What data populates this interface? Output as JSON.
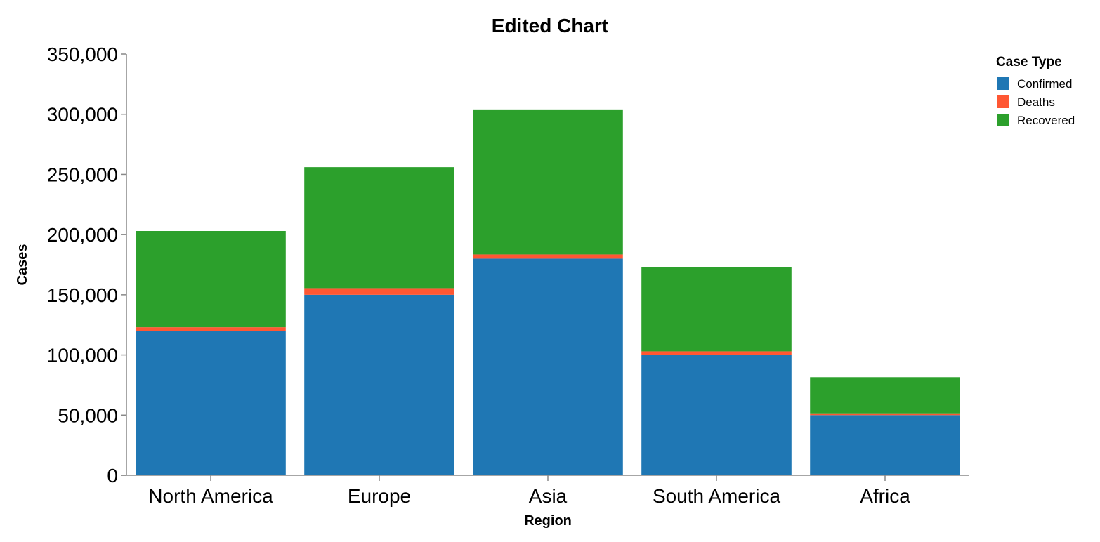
{
  "chart_data": {
    "type": "bar",
    "stacked": true,
    "title": "Edited Chart",
    "xlabel": "Region",
    "ylabel": "Cases",
    "categories": [
      "North America",
      "Europe",
      "Asia",
      "South America",
      "Africa"
    ],
    "series": [
      {
        "name": "Confirmed",
        "color": "#1f77b4",
        "values": [
          120000,
          150000,
          180000,
          100000,
          50000
        ]
      },
      {
        "name": "Deaths",
        "color": "#ff5733",
        "values": [
          3000,
          5500,
          3500,
          3000,
          1500
        ]
      },
      {
        "name": "Recovered",
        "color": "#2ca02c",
        "values": [
          80000,
          100500,
          120500,
          70000,
          30000
        ]
      }
    ],
    "ylim": [
      0,
      350000
    ],
    "yticks": [
      0,
      50000,
      100000,
      150000,
      200000,
      250000,
      300000,
      350000
    ],
    "ytick_labels": [
      "0",
      "50,000",
      "100,000",
      "150,000",
      "200,000",
      "250,000",
      "300,000",
      "350,000"
    ],
    "grid": false,
    "legend": {
      "title": "Case Type",
      "position": "top-right"
    }
  }
}
